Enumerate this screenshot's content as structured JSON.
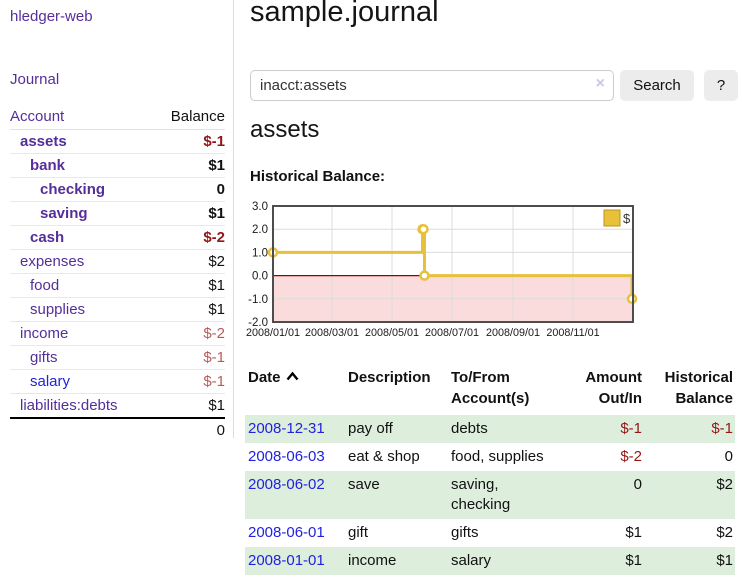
{
  "app_title": "hledger-web",
  "sidebar": {
    "journal_link": "Journal",
    "headers": {
      "account": "Account",
      "balance": "Balance"
    },
    "rows": [
      {
        "name": "assets",
        "balance": "$-1"
      },
      {
        "name": "bank",
        "balance": "$1"
      },
      {
        "name": "checking",
        "balance": "0"
      },
      {
        "name": "saving",
        "balance": "$1"
      },
      {
        "name": "cash",
        "balance": "$-2"
      },
      {
        "name": "expenses",
        "balance": "$2"
      },
      {
        "name": "food",
        "balance": "$1"
      },
      {
        "name": "supplies",
        "balance": "$1"
      },
      {
        "name": "income",
        "balance": "$-2"
      },
      {
        "name": "gifts",
        "balance": "$-1"
      },
      {
        "name": "salary",
        "balance": "$-1"
      },
      {
        "name": "liabilities:debts",
        "balance": "$1"
      }
    ],
    "total": "0"
  },
  "main": {
    "title": "sample.journal",
    "search": {
      "value": "inacct:assets",
      "clear_icon": "×",
      "search_button": "Search",
      "help_button": "?"
    },
    "heading": "assets",
    "chart_label": "Historical Balance:",
    "register": {
      "headers": {
        "date": "Date",
        "description": "Description",
        "accounts": "To/From Account(s)",
        "amount": "Amount Out/In",
        "balance": "Historical Balance"
      },
      "rows": [
        {
          "date": "2008-12-31",
          "description": "pay off",
          "accounts": "debts",
          "amount": "$-1",
          "balance": "$-1"
        },
        {
          "date": "2008-06-03",
          "description": "eat & shop",
          "accounts": "food, supplies",
          "amount": "$-2",
          "balance": "0"
        },
        {
          "date": "2008-06-02",
          "description": "save",
          "accounts": "saving, checking",
          "amount": "0",
          "balance": "$2"
        },
        {
          "date": "2008-06-01",
          "description": "gift",
          "accounts": "gifts",
          "amount": "$1",
          "balance": "$2"
        },
        {
          "date": "2008-01-01",
          "description": "income",
          "accounts": "salary",
          "amount": "$1",
          "balance": "$1"
        }
      ]
    }
  },
  "chart_data": {
    "type": "line",
    "title": "Historical Balance",
    "step": true,
    "series": [
      {
        "name": "$",
        "points": [
          [
            "2008-01-01",
            1
          ],
          [
            "2008-06-01",
            2
          ],
          [
            "2008-06-02",
            2
          ],
          [
            "2008-06-03",
            0
          ],
          [
            "2008-12-31",
            -1
          ]
        ]
      }
    ],
    "x_range": [
      "2008-01-01",
      "2009-01-01"
    ],
    "x_tick_labels": [
      "2008/01/01",
      "2008/03/01",
      "2008/05/01",
      "2008/07/01",
      "2008/09/01",
      "2008/11/01"
    ],
    "y_ticks": [
      3.0,
      2.0,
      1.0,
      0.0,
      -1.0,
      -2.0
    ],
    "y_tick_labels": [
      "3.0",
      "2.0",
      "1.0",
      "0.0",
      "-1.0",
      "-2.0"
    ],
    "ylim": [
      -2,
      3
    ],
    "grid": true,
    "legend": {
      "label": "$",
      "position": "top-right"
    },
    "colors": {
      "line": "#e8c03a",
      "legend_box_border": "#bd9415",
      "negative_region": "#fbdcdc",
      "zero_line": "#990000",
      "grid": "#dcdcdc",
      "border": "#4d4d4d"
    }
  }
}
